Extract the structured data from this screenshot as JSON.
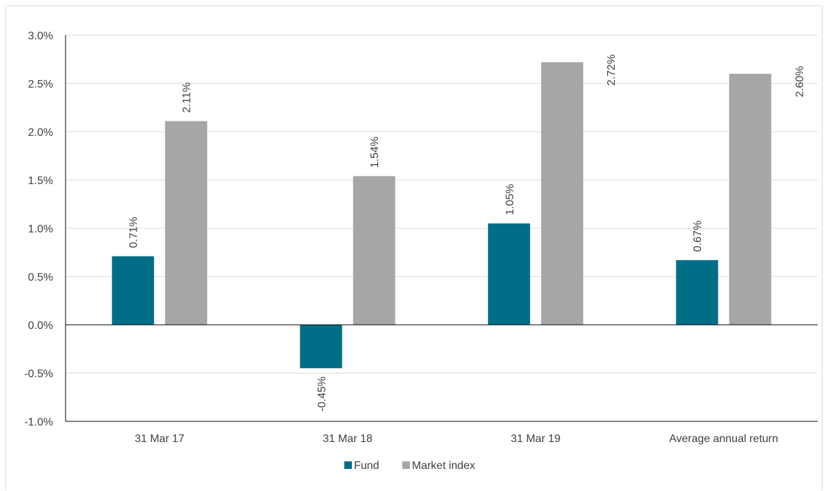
{
  "chart_data": {
    "type": "bar",
    "categories": [
      "31 Mar 17",
      "31 Mar 18",
      "31 Mar 19",
      "Average annual return"
    ],
    "series": [
      {
        "name": "Fund",
        "values": [
          0.71,
          -0.45,
          1.05,
          0.67
        ],
        "labels": [
          "0.71%",
          "-0.45%",
          "1.05%",
          "0.67%"
        ],
        "color": "#006e87"
      },
      {
        "name": "Market index",
        "values": [
          2.11,
          1.54,
          2.72,
          2.6
        ],
        "labels": [
          "2.11%",
          "1.54%",
          "2.72%",
          "2.60%"
        ],
        "color": "#a6a6a6"
      }
    ],
    "ylim": [
      -1.0,
      3.0
    ],
    "yticks": [
      3.0,
      2.5,
      2.0,
      1.5,
      1.0,
      0.5,
      0.0,
      -0.5,
      -1.0
    ],
    "ytick_labels": [
      "3.0%",
      "2.5%",
      "2.0%",
      "1.5%",
      "1.0%",
      "0.5%",
      "0.0%",
      "-0.5%",
      "-1.0%"
    ],
    "grid": true,
    "legend_position": "bottom",
    "data_label_orientation": "vertical",
    "title": "",
    "xlabel": "",
    "ylabel": ""
  }
}
